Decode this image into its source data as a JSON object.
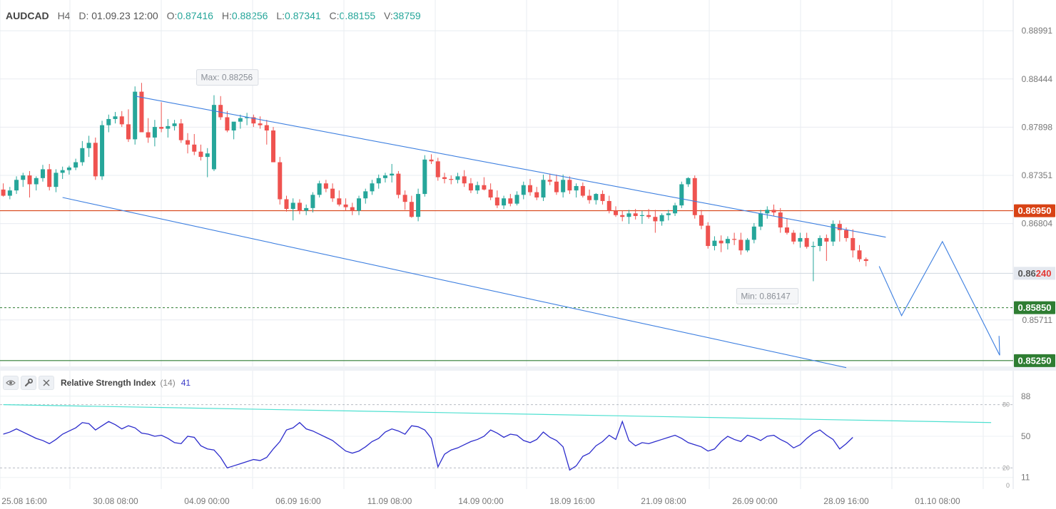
{
  "header": {
    "symbol": "AUDCAD",
    "timeframe": "H4",
    "date_label": "D:",
    "date_value": "01.09.23 12:00",
    "open_label": "O:",
    "open_value": "0.87416",
    "high_label": "H:",
    "high_value": "0.88256",
    "low_label": "L:",
    "low_value": "0.87341",
    "close_label": "C:",
    "close_value": "0.88155",
    "volume_label": "V:",
    "volume_value": "38759"
  },
  "rsi_panel": {
    "title": "Relative Strength Index",
    "period": "(14)",
    "value": "41"
  },
  "colors": {
    "bull": "#26a69a",
    "bear": "#ef5350",
    "channel": "#3d7fe0",
    "rsi_line": "#2c2ccc",
    "rsi_trend": "#4de0d0",
    "level_red": "#d84315",
    "level_green": "#2e7d32",
    "current_price_bg": "#e4e8ef"
  },
  "chart_data": {
    "type": "candlestick",
    "symbol": "AUDCAD",
    "timeframe": "H4",
    "y_axis_ticks": [
      "0.88991",
      "0.88444",
      "0.87898",
      "0.87351",
      "0.86804",
      "0.85711"
    ],
    "ylim": [
      0.852,
      0.8934
    ],
    "x_axis_ticks": [
      "25.08 16:00",
      "30.08 08:00",
      "04.09 00:00",
      "06.09 16:00",
      "11.09 08:00",
      "14.09 00:00",
      "18.09 16:00",
      "21.09 08:00",
      "26.09 00:00",
      "28.09 16:00",
      "01.10 08:00"
    ],
    "candles_ohlc": [
      [
        0.8719,
        0.8726,
        0.8711,
        0.8712
      ],
      [
        0.8712,
        0.8722,
        0.8708,
        0.8718
      ],
      [
        0.8718,
        0.8734,
        0.8714,
        0.873
      ],
      [
        0.873,
        0.8738,
        0.8722,
        0.8735
      ],
      [
        0.8735,
        0.874,
        0.871,
        0.8725
      ],
      [
        0.8725,
        0.8734,
        0.8718,
        0.8732
      ],
      [
        0.8732,
        0.8747,
        0.8728,
        0.8742
      ],
      [
        0.8742,
        0.8748,
        0.8718,
        0.8722
      ],
      [
        0.8722,
        0.8742,
        0.8716,
        0.8738
      ],
      [
        0.8738,
        0.8745,
        0.8731,
        0.8741
      ],
      [
        0.8741,
        0.8746,
        0.8736,
        0.8744
      ],
      [
        0.8744,
        0.8754,
        0.8741,
        0.875
      ],
      [
        0.875,
        0.8774,
        0.8746,
        0.8766
      ],
      [
        0.8766,
        0.878,
        0.8756,
        0.8772
      ],
      [
        0.8772,
        0.8778,
        0.873,
        0.8734
      ],
      [
        0.8734,
        0.8797,
        0.873,
        0.8792
      ],
      [
        0.8792,
        0.8804,
        0.8784,
        0.8799
      ],
      [
        0.8799,
        0.8807,
        0.8794,
        0.8802
      ],
      [
        0.8802,
        0.8808,
        0.879,
        0.8793
      ],
      [
        0.8793,
        0.881,
        0.8773,
        0.8776
      ],
      [
        0.8776,
        0.8836,
        0.877,
        0.883
      ],
      [
        0.883,
        0.884,
        0.8792,
        0.8784
      ],
      [
        0.8784,
        0.88,
        0.8772,
        0.8778
      ],
      [
        0.8778,
        0.8798,
        0.8768,
        0.879
      ],
      [
        0.879,
        0.8818,
        0.8784,
        0.8788
      ],
      [
        0.8788,
        0.8799,
        0.8778,
        0.8791
      ],
      [
        0.8791,
        0.8798,
        0.8786,
        0.8794
      ],
      [
        0.8794,
        0.8799,
        0.8772,
        0.8775
      ],
      [
        0.8775,
        0.8783,
        0.876,
        0.877
      ],
      [
        0.877,
        0.8782,
        0.8758,
        0.8762
      ],
      [
        0.8762,
        0.877,
        0.8752,
        0.8756
      ],
      [
        0.8756,
        0.8766,
        0.8733,
        0.876
      ],
      [
        0.8742,
        0.8826,
        0.874,
        0.8815
      ],
      [
        0.8815,
        0.8825,
        0.8798,
        0.8801
      ],
      [
        0.8801,
        0.8808,
        0.8784,
        0.8786
      ],
      [
        0.8786,
        0.8792,
        0.8776,
        0.8796
      ],
      [
        0.8796,
        0.8804,
        0.8788,
        0.88
      ],
      [
        0.88,
        0.8806,
        0.8792,
        0.8801
      ],
      [
        0.8801,
        0.8804,
        0.879,
        0.8794
      ],
      [
        0.8794,
        0.8802,
        0.8788,
        0.8792
      ],
      [
        0.8792,
        0.8798,
        0.877,
        0.8786
      ],
      [
        0.8786,
        0.879,
        0.875,
        0.875
      ],
      [
        0.875,
        0.8756,
        0.8702,
        0.8708
      ],
      [
        0.8708,
        0.8712,
        0.8694,
        0.8697
      ],
      [
        0.8697,
        0.8709,
        0.8684,
        0.8704
      ],
      [
        0.8704,
        0.8708,
        0.8691,
        0.8695
      ],
      [
        0.8695,
        0.8702,
        0.869,
        0.8698
      ],
      [
        0.8698,
        0.8716,
        0.8693,
        0.8713
      ],
      [
        0.8713,
        0.8729,
        0.871,
        0.8726
      ],
      [
        0.8726,
        0.873,
        0.8716,
        0.872
      ],
      [
        0.872,
        0.8726,
        0.8705,
        0.8709
      ],
      [
        0.8709,
        0.8718,
        0.87,
        0.8702
      ],
      [
        0.8702,
        0.8709,
        0.8695,
        0.8699
      ],
      [
        0.8699,
        0.8704,
        0.869,
        0.8695
      ],
      [
        0.8695,
        0.8712,
        0.869,
        0.8709
      ],
      [
        0.8709,
        0.872,
        0.8703,
        0.8717
      ],
      [
        0.8717,
        0.873,
        0.8713,
        0.8726
      ],
      [
        0.8726,
        0.8736,
        0.872,
        0.8732
      ],
      [
        0.8732,
        0.8738,
        0.8727,
        0.8735
      ],
      [
        0.8735,
        0.8748,
        0.8727,
        0.8737
      ],
      [
        0.8737,
        0.874,
        0.8709,
        0.8713
      ],
      [
        0.8713,
        0.8718,
        0.8696,
        0.8705
      ],
      [
        0.8705,
        0.8712,
        0.8687,
        0.8688
      ],
      [
        0.8688,
        0.872,
        0.8683,
        0.8714
      ],
      [
        0.8714,
        0.8758,
        0.8711,
        0.8753
      ],
      [
        0.8753,
        0.8759,
        0.8748,
        0.8751
      ],
      [
        0.8751,
        0.8755,
        0.8729,
        0.8733
      ],
      [
        0.8733,
        0.8738,
        0.8726,
        0.8731
      ],
      [
        0.8731,
        0.8735,
        0.8725,
        0.873
      ],
      [
        0.873,
        0.8738,
        0.8726,
        0.8734
      ],
      [
        0.8734,
        0.8741,
        0.8722,
        0.8726
      ],
      [
        0.8726,
        0.8732,
        0.8715,
        0.8718
      ],
      [
        0.8718,
        0.8728,
        0.8714,
        0.8724
      ],
      [
        0.8724,
        0.8733,
        0.8718,
        0.8719
      ],
      [
        0.8719,
        0.8726,
        0.8707,
        0.871
      ],
      [
        0.871,
        0.8718,
        0.8698,
        0.8701
      ],
      [
        0.8701,
        0.8712,
        0.8697,
        0.8709
      ],
      [
        0.8709,
        0.8714,
        0.87,
        0.8703
      ],
      [
        0.8703,
        0.8717,
        0.8701,
        0.8713
      ],
      [
        0.8713,
        0.8728,
        0.8708,
        0.8724
      ],
      [
        0.8724,
        0.8731,
        0.8712,
        0.8716
      ],
      [
        0.8716,
        0.8722,
        0.8707,
        0.871
      ],
      [
        0.871,
        0.8736,
        0.8706,
        0.873
      ],
      [
        0.873,
        0.8737,
        0.8724,
        0.8728
      ],
      [
        0.8728,
        0.8736,
        0.8713,
        0.8716
      ],
      [
        0.8716,
        0.8736,
        0.871,
        0.873
      ],
      [
        0.873,
        0.8734,
        0.8714,
        0.8718
      ],
      [
        0.8718,
        0.8726,
        0.871,
        0.8723
      ],
      [
        0.8723,
        0.8727,
        0.871,
        0.8712
      ],
      [
        0.8712,
        0.8719,
        0.8703,
        0.8707
      ],
      [
        0.8707,
        0.8715,
        0.8702,
        0.8714
      ],
      [
        0.8714,
        0.8718,
        0.8702,
        0.8706
      ],
      [
        0.8706,
        0.8712,
        0.8692,
        0.8695
      ],
      [
        0.8695,
        0.87,
        0.8688,
        0.869
      ],
      [
        0.869,
        0.8695,
        0.8683,
        0.8688
      ],
      [
        0.8688,
        0.8696,
        0.868,
        0.8692
      ],
      [
        0.8692,
        0.8697,
        0.8685,
        0.8689
      ],
      [
        0.8689,
        0.8695,
        0.868,
        0.869
      ],
      [
        0.869,
        0.8697,
        0.8686,
        0.8688
      ],
      [
        0.8688,
        0.8696,
        0.867,
        0.8683
      ],
      [
        0.8683,
        0.8692,
        0.8678,
        0.869
      ],
      [
        0.869,
        0.8696,
        0.8684,
        0.8692
      ],
      [
        0.8692,
        0.8704,
        0.8689,
        0.8701
      ],
      [
        0.8701,
        0.8728,
        0.8698,
        0.8725
      ],
      [
        0.8725,
        0.8733,
        0.8722,
        0.8732
      ],
      [
        0.8732,
        0.8735,
        0.8686,
        0.869
      ],
      [
        0.869,
        0.8696,
        0.8674,
        0.8678
      ],
      [
        0.8678,
        0.8682,
        0.8652,
        0.8655
      ],
      [
        0.8655,
        0.8666,
        0.865,
        0.8661
      ],
      [
        0.8661,
        0.8667,
        0.8648,
        0.8658
      ],
      [
        0.8658,
        0.8666,
        0.8651,
        0.8663
      ],
      [
        0.8663,
        0.867,
        0.8656,
        0.8662
      ],
      [
        0.8662,
        0.867,
        0.8645,
        0.865
      ],
      [
        0.865,
        0.8664,
        0.8648,
        0.8662
      ],
      [
        0.8662,
        0.8681,
        0.8658,
        0.8677
      ],
      [
        0.8677,
        0.8696,
        0.8673,
        0.8692
      ],
      [
        0.8692,
        0.87,
        0.8686,
        0.8696
      ],
      [
        0.8696,
        0.8702,
        0.8689,
        0.8693
      ],
      [
        0.8693,
        0.8698,
        0.867,
        0.8676
      ],
      [
        0.8676,
        0.8686,
        0.8668,
        0.867
      ],
      [
        0.867,
        0.8673,
        0.8657,
        0.866
      ],
      [
        0.866,
        0.867,
        0.8653,
        0.8664
      ],
      [
        0.8664,
        0.867,
        0.8652,
        0.8654
      ],
      [
        0.8654,
        0.866,
        0.8615,
        0.8655
      ],
      [
        0.8655,
        0.8667,
        0.8649,
        0.8664
      ],
      [
        0.8664,
        0.8668,
        0.8638,
        0.866
      ],
      [
        0.866,
        0.8684,
        0.8655,
        0.868
      ],
      [
        0.868,
        0.8684,
        0.866,
        0.8673
      ],
      [
        0.8673,
        0.8676,
        0.866,
        0.8664
      ],
      [
        0.8664,
        0.8674,
        0.8642,
        0.865
      ],
      [
        0.865,
        0.8656,
        0.8637,
        0.864
      ],
      [
        0.864,
        0.8642,
        0.8632,
        0.8638
      ]
    ],
    "annotations": [
      "Max: 0.88256",
      "Min: 0.86147"
    ],
    "price_levels": [
      {
        "label": "0.86950",
        "value": 0.8695,
        "color": "#d84315",
        "style": "solid"
      },
      {
        "label": "0.86240",
        "value": 0.8624,
        "color": "#e4e8ef",
        "style": "current"
      },
      {
        "label": "0.85850",
        "value": 0.8585,
        "color": "#2e7d32",
        "style": "dashed"
      },
      {
        "label": "0.85250",
        "value": 0.8525,
        "color": "#2e7d32",
        "style": "solid"
      }
    ],
    "channel_upper": [
      [
        20,
        0.8825
      ],
      [
        134,
        0.8665
      ]
    ],
    "channel_lower": [
      [
        9,
        0.871
      ],
      [
        128,
        0.8517
      ]
    ],
    "projection_path": [
      [
        133,
        0.8632
      ],
      [
        136.4,
        0.8576
      ],
      [
        142.6,
        0.866
      ],
      [
        151.3,
        0.8531
      ]
    ],
    "projection_arrow_tail": [
      151.2,
      0.8553
    ],
    "rsi": {
      "ticks": [
        "88",
        "50",
        "11"
      ],
      "levels": [
        "80",
        "20",
        "0"
      ],
      "ylim": [
        0,
        100
      ],
      "values": [
        52,
        54,
        57,
        54,
        51,
        48,
        46,
        43,
        47,
        52,
        55,
        58,
        63,
        62,
        56,
        60,
        64,
        61,
        57,
        60,
        58,
        53,
        52,
        50,
        51,
        48,
        44,
        43,
        50,
        49,
        41,
        38,
        37,
        30,
        20,
        22,
        24,
        26,
        28,
        27,
        30,
        38,
        45,
        56,
        58,
        63,
        57,
        55,
        52,
        49,
        46,
        41,
        36,
        34,
        36,
        40,
        45,
        48,
        54,
        57,
        55,
        52,
        60,
        59,
        56,
        48,
        21,
        33,
        37,
        39,
        42,
        45,
        47,
        50,
        56,
        53,
        49,
        52,
        51,
        46,
        44,
        47,
        54,
        49,
        46,
        40,
        18,
        22,
        31,
        34,
        41,
        45,
        51,
        47,
        64,
        46,
        41,
        44,
        43,
        45,
        47,
        49,
        51,
        48,
        44,
        42,
        40,
        36,
        38,
        45,
        50,
        47,
        45,
        51,
        49,
        46,
        50,
        51,
        47,
        44,
        39,
        42,
        48,
        53,
        56,
        51,
        47,
        38,
        43,
        49
      ],
      "trend": [
        [
          0,
          80
        ],
        [
          150,
          63
        ]
      ]
    }
  }
}
